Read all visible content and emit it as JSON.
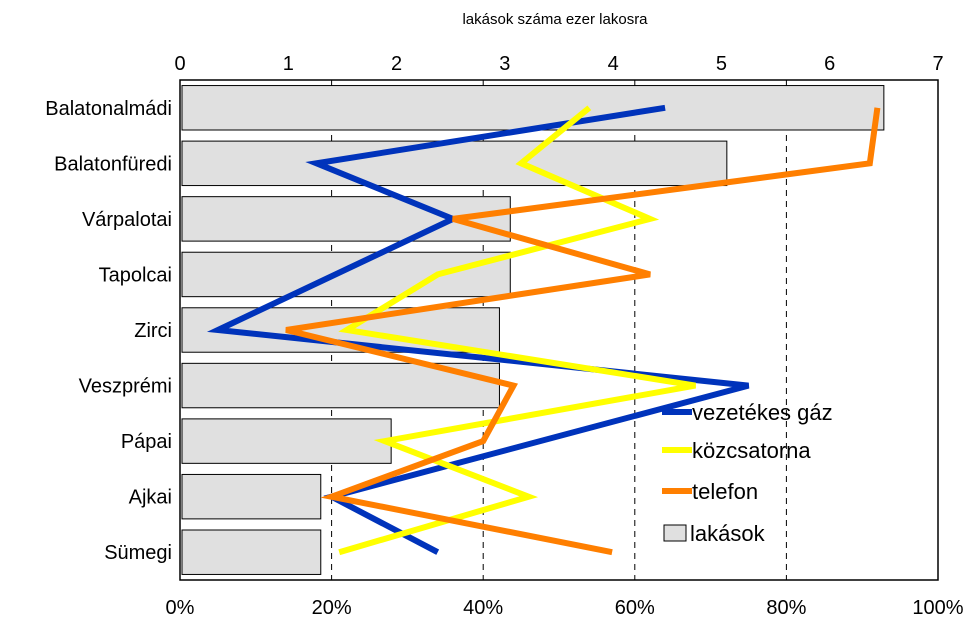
{
  "chart_data": {
    "type": "bar",
    "title": "lakások száma ezer lakosra",
    "categories": [
      "Balatonalmádi",
      "Balatonfüredi",
      "Várpalotai",
      "Tapolcai",
      "Zirci ",
      "Veszprémi",
      "Pápai",
      "Ajkai",
      "Sümegi"
    ],
    "bars": {
      "name": "lakások",
      "axis": "top",
      "values": [
        6.5,
        5.05,
        3.05,
        3.05,
        2.95,
        2.95,
        1.95,
        1.3,
        1.3
      ],
      "color": "#e0e0e0"
    },
    "top_axis": {
      "min": 0,
      "max": 7,
      "ticks": [
        "0",
        "1",
        "2",
        "3",
        "4",
        "5",
        "6",
        "7"
      ]
    },
    "bottom_axis": {
      "min": 0,
      "max": 100,
      "ticks": [
        "0%",
        "20%",
        "40%",
        "60%",
        "80%",
        "100%"
      ]
    },
    "series": [
      {
        "name": "vezetékes gáz",
        "color": "#0033bb",
        "values": [
          64,
          18,
          36,
          null,
          5,
          75,
          null,
          20,
          34
        ]
      },
      {
        "name": "közcsatorna",
        "color": "#ffff00",
        "values": [
          54,
          45,
          62,
          34,
          22,
          68,
          27,
          46,
          21
        ]
      },
      {
        "name": "telefon",
        "color": "#ff7f00",
        "values": [
          92,
          91,
          36,
          62,
          14,
          44,
          40,
          20,
          57
        ]
      }
    ],
    "gridlines": {
      "style": "dashed",
      "at_percent": [
        20,
        40,
        60,
        80
      ]
    },
    "legend": {
      "placement": "bottom-right"
    }
  }
}
